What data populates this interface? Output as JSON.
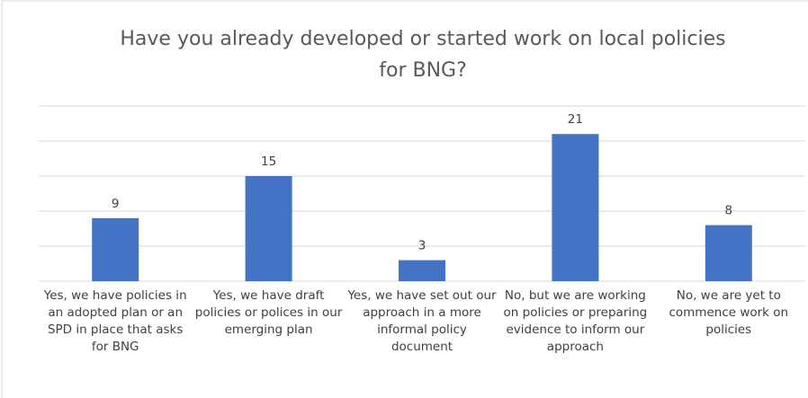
{
  "chart_data": {
    "type": "bar",
    "title": "Have you already developed or started work on local policies for BNG?",
    "categories": [
      "Yes, we have policies in an adopted plan or an SPD in place that asks for BNG",
      "Yes, we have draft policies or polices in our emerging plan",
      "Yes, we have set out our approach in a more informal policy document",
      "No, but we are working on policies or preparing evidence to inform our approach",
      "No, we are yet to commence work on policies"
    ],
    "values": [
      9,
      15,
      3,
      21,
      8
    ],
    "color": "#4472c4",
    "ylim": [
      0,
      25
    ],
    "yticks": [
      0,
      5,
      10,
      15,
      20,
      25
    ],
    "grid": true
  }
}
